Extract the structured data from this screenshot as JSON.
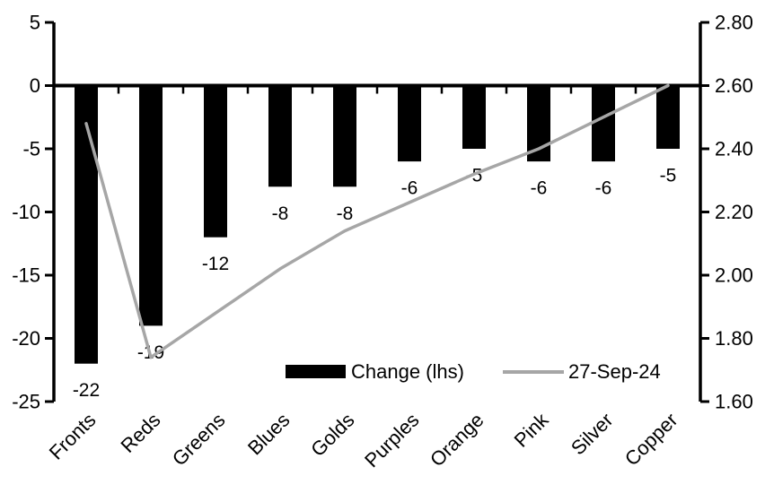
{
  "chart_data": {
    "type": "bar",
    "subtype": "combo-bar-line-dual-axis",
    "title": "",
    "categories": [
      "Fronts",
      "Reds",
      "Greens",
      "Blues",
      "Golds",
      "Purples",
      "Orange",
      "Pink",
      "Silver",
      "Copper"
    ],
    "series": [
      {
        "name": "Change (lhs)",
        "type": "bar",
        "axis": "left",
        "color": "#000000",
        "values": [
          -22,
          -19,
          -12,
          -8,
          -8,
          -6,
          -5,
          -6,
          -6,
          -5
        ],
        "data_labels": [
          "-22",
          "-19",
          "-12",
          "-8",
          "-8",
          "-6",
          "-5",
          "-6",
          "-6",
          "-5"
        ]
      },
      {
        "name": "27-Sep-24",
        "type": "line",
        "axis": "right",
        "color": "#a6a6a6",
        "values": [
          2.48,
          1.74,
          1.88,
          2.02,
          2.14,
          2.23,
          2.32,
          2.4,
          2.5,
          2.6
        ]
      }
    ],
    "left_axis": {
      "min": -25,
      "max": 5,
      "tick_labels": [
        "5",
        "0",
        "-5",
        "-10",
        "-15",
        "-20",
        "-25"
      ]
    },
    "right_axis": {
      "min": 1.6,
      "max": 2.8,
      "tick_labels": [
        "2.80",
        "2.60",
        "2.40",
        "2.20",
        "2.00",
        "1.80",
        "1.60"
      ]
    },
    "grid": false,
    "legend_position": "bottom-center-inside",
    "axis_color": "#000000",
    "text_color": "#000000",
    "background_color": "#ffffff"
  }
}
